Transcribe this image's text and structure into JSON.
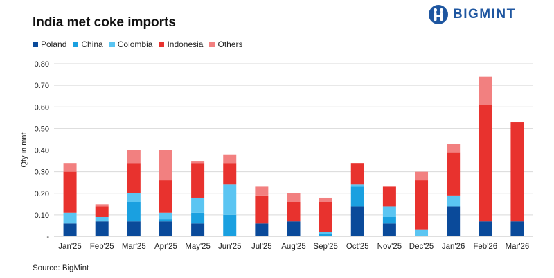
{
  "title": "India met coke imports",
  "brand": "BIGMINT",
  "source": "Source: BigMint",
  "colors": {
    "Poland": "#0a4a9a",
    "China": "#1aa0e0",
    "Colombia": "#5bc5f2",
    "Indonesia": "#e8322e",
    "Others": "#f28080",
    "brand": "#1e56a0"
  },
  "chart_data": {
    "type": "bar",
    "stacked": true,
    "title": "India met coke imports",
    "ylabel": "Qty in mnt",
    "xlabel": "",
    "ylim": [
      0,
      0.8
    ],
    "yticks": [
      "-",
      "0.10",
      "0.20",
      "0.30",
      "0.40",
      "0.50",
      "0.60",
      "0.70",
      "0.80"
    ],
    "grid": true,
    "legend_position": "top-left",
    "categories": [
      "Jan'25",
      "Feb'25",
      "Mar'25",
      "Apr'25",
      "May'25",
      "Jun'25",
      "Jul'25",
      "Aug'25",
      "Sep'25",
      "Oct'25",
      "Nov'25",
      "Dec'25",
      "Jan'26",
      "Feb'26",
      "Mar'26"
    ],
    "series": [
      {
        "name": "Poland",
        "values": [
          0.06,
          0.07,
          0.07,
          0.07,
          0.06,
          0.0,
          0.06,
          0.07,
          0.0,
          0.14,
          0.06,
          0.0,
          0.14,
          0.07,
          0.07
        ]
      },
      {
        "name": "China",
        "values": [
          0.0,
          0.0,
          0.09,
          0.01,
          0.05,
          0.1,
          0.0,
          0.0,
          0.01,
          0.09,
          0.03,
          0.0,
          0.0,
          0.0,
          0.0
        ]
      },
      {
        "name": "Colombia",
        "values": [
          0.05,
          0.02,
          0.04,
          0.03,
          0.07,
          0.14,
          0.0,
          0.0,
          0.01,
          0.01,
          0.05,
          0.03,
          0.05,
          0.0,
          0.0
        ]
      },
      {
        "name": "Indonesia",
        "values": [
          0.19,
          0.05,
          0.14,
          0.15,
          0.16,
          0.1,
          0.13,
          0.09,
          0.14,
          0.1,
          0.09,
          0.23,
          0.2,
          0.54,
          0.46
        ]
      },
      {
        "name": "Others",
        "values": [
          0.04,
          0.01,
          0.06,
          0.14,
          0.01,
          0.04,
          0.04,
          0.04,
          0.02,
          0.0,
          0.0,
          0.04,
          0.04,
          0.13,
          0.0
        ]
      }
    ]
  }
}
